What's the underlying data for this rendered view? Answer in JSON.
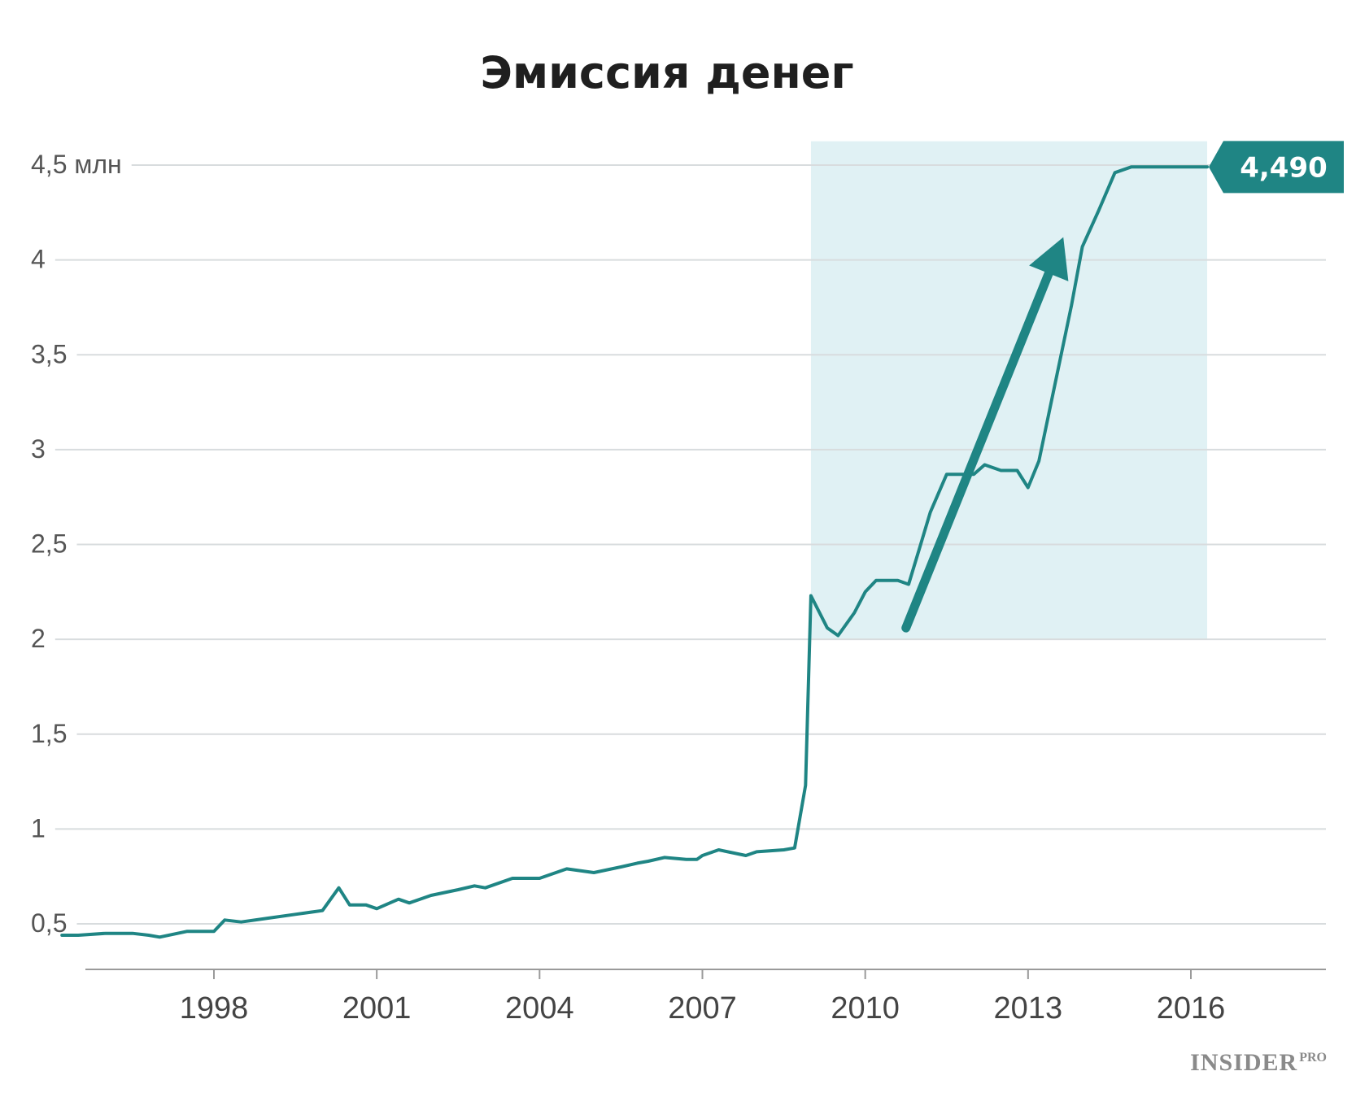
{
  "colors": {
    "line": "#1f8584",
    "highlight": "#e0f1f4",
    "grid": "#d8dcde",
    "callout": "#1f8584"
  },
  "chart_data": {
    "type": "line",
    "title": "Эмиссия денег",
    "ylim": [
      0.3,
      4.6
    ],
    "xlim": [
      1995.2,
      2018.0
    ],
    "y_ticks": [
      {
        "value": 4.5,
        "label": "4,5 млн"
      },
      {
        "value": 4.0,
        "label": "4"
      },
      {
        "value": 3.5,
        "label": "3,5"
      },
      {
        "value": 3.0,
        "label": "3"
      },
      {
        "value": 2.5,
        "label": "2,5"
      },
      {
        "value": 2.0,
        "label": "2"
      },
      {
        "value": 1.5,
        "label": "1,5"
      },
      {
        "value": 1.0,
        "label": "1"
      },
      {
        "value": 0.5,
        "label": "0,5"
      }
    ],
    "x_ticks": [
      1998,
      2001,
      2004,
      2007,
      2010,
      2013,
      2016
    ],
    "grid": true,
    "highlight_range": {
      "x": [
        2009.0,
        2016.3
      ],
      "y": [
        2.0,
        4.6
      ]
    },
    "trend_arrow": {
      "from": [
        2010.75,
        2.06
      ],
      "to": [
        2013.65,
        4.12
      ]
    },
    "end_label": "4,490",
    "series": [
      {
        "x": [
          1995.2,
          1995.5,
          1996.0,
          1996.5,
          1996.8,
          1997.0,
          1997.5,
          1998.0,
          1998.2,
          1998.5,
          1999.0,
          1999.5,
          2000.0,
          2000.3,
          2000.5,
          2000.8,
          2001.0,
          2001.4,
          2001.6,
          2002.0,
          2002.5,
          2002.8,
          2003.0,
          2003.5,
          2003.8,
          2004.0,
          2004.5,
          2005.0,
          2005.5,
          2005.8,
          2006.0,
          2006.3,
          2006.7,
          2006.9,
          2007.0,
          2007.3,
          2007.8,
          2008.0,
          2008.5,
          2008.7,
          2008.9,
          2009.0,
          2009.3,
          2009.5,
          2009.8,
          2010.0,
          2010.2,
          2010.6,
          2010.8,
          2011.0,
          2011.2,
          2011.5,
          2011.7,
          2012.0,
          2012.2,
          2012.5,
          2012.8,
          2013.0,
          2013.2,
          2013.5,
          2013.8,
          2014.0,
          2014.3,
          2014.6,
          2014.9,
          2015.2,
          2015.5,
          2016.0,
          2016.3
        ],
        "values": [
          0.44,
          0.44,
          0.45,
          0.45,
          0.44,
          0.43,
          0.46,
          0.46,
          0.52,
          0.51,
          0.53,
          0.55,
          0.57,
          0.69,
          0.6,
          0.6,
          0.58,
          0.63,
          0.61,
          0.65,
          0.68,
          0.7,
          0.69,
          0.74,
          0.74,
          0.74,
          0.79,
          0.77,
          0.8,
          0.82,
          0.83,
          0.85,
          0.84,
          0.84,
          0.86,
          0.89,
          0.86,
          0.88,
          0.89,
          0.9,
          1.23,
          2.23,
          2.06,
          2.02,
          2.14,
          2.25,
          2.31,
          2.31,
          2.29,
          2.48,
          2.67,
          2.87,
          2.87,
          2.87,
          2.92,
          2.89,
          2.89,
          2.8,
          2.94,
          3.35,
          3.76,
          4.07,
          4.26,
          4.46,
          4.49,
          4.49,
          4.49,
          4.49,
          4.49
        ]
      }
    ]
  },
  "logo": {
    "main": "INSIDER",
    "sup": "PRO"
  }
}
